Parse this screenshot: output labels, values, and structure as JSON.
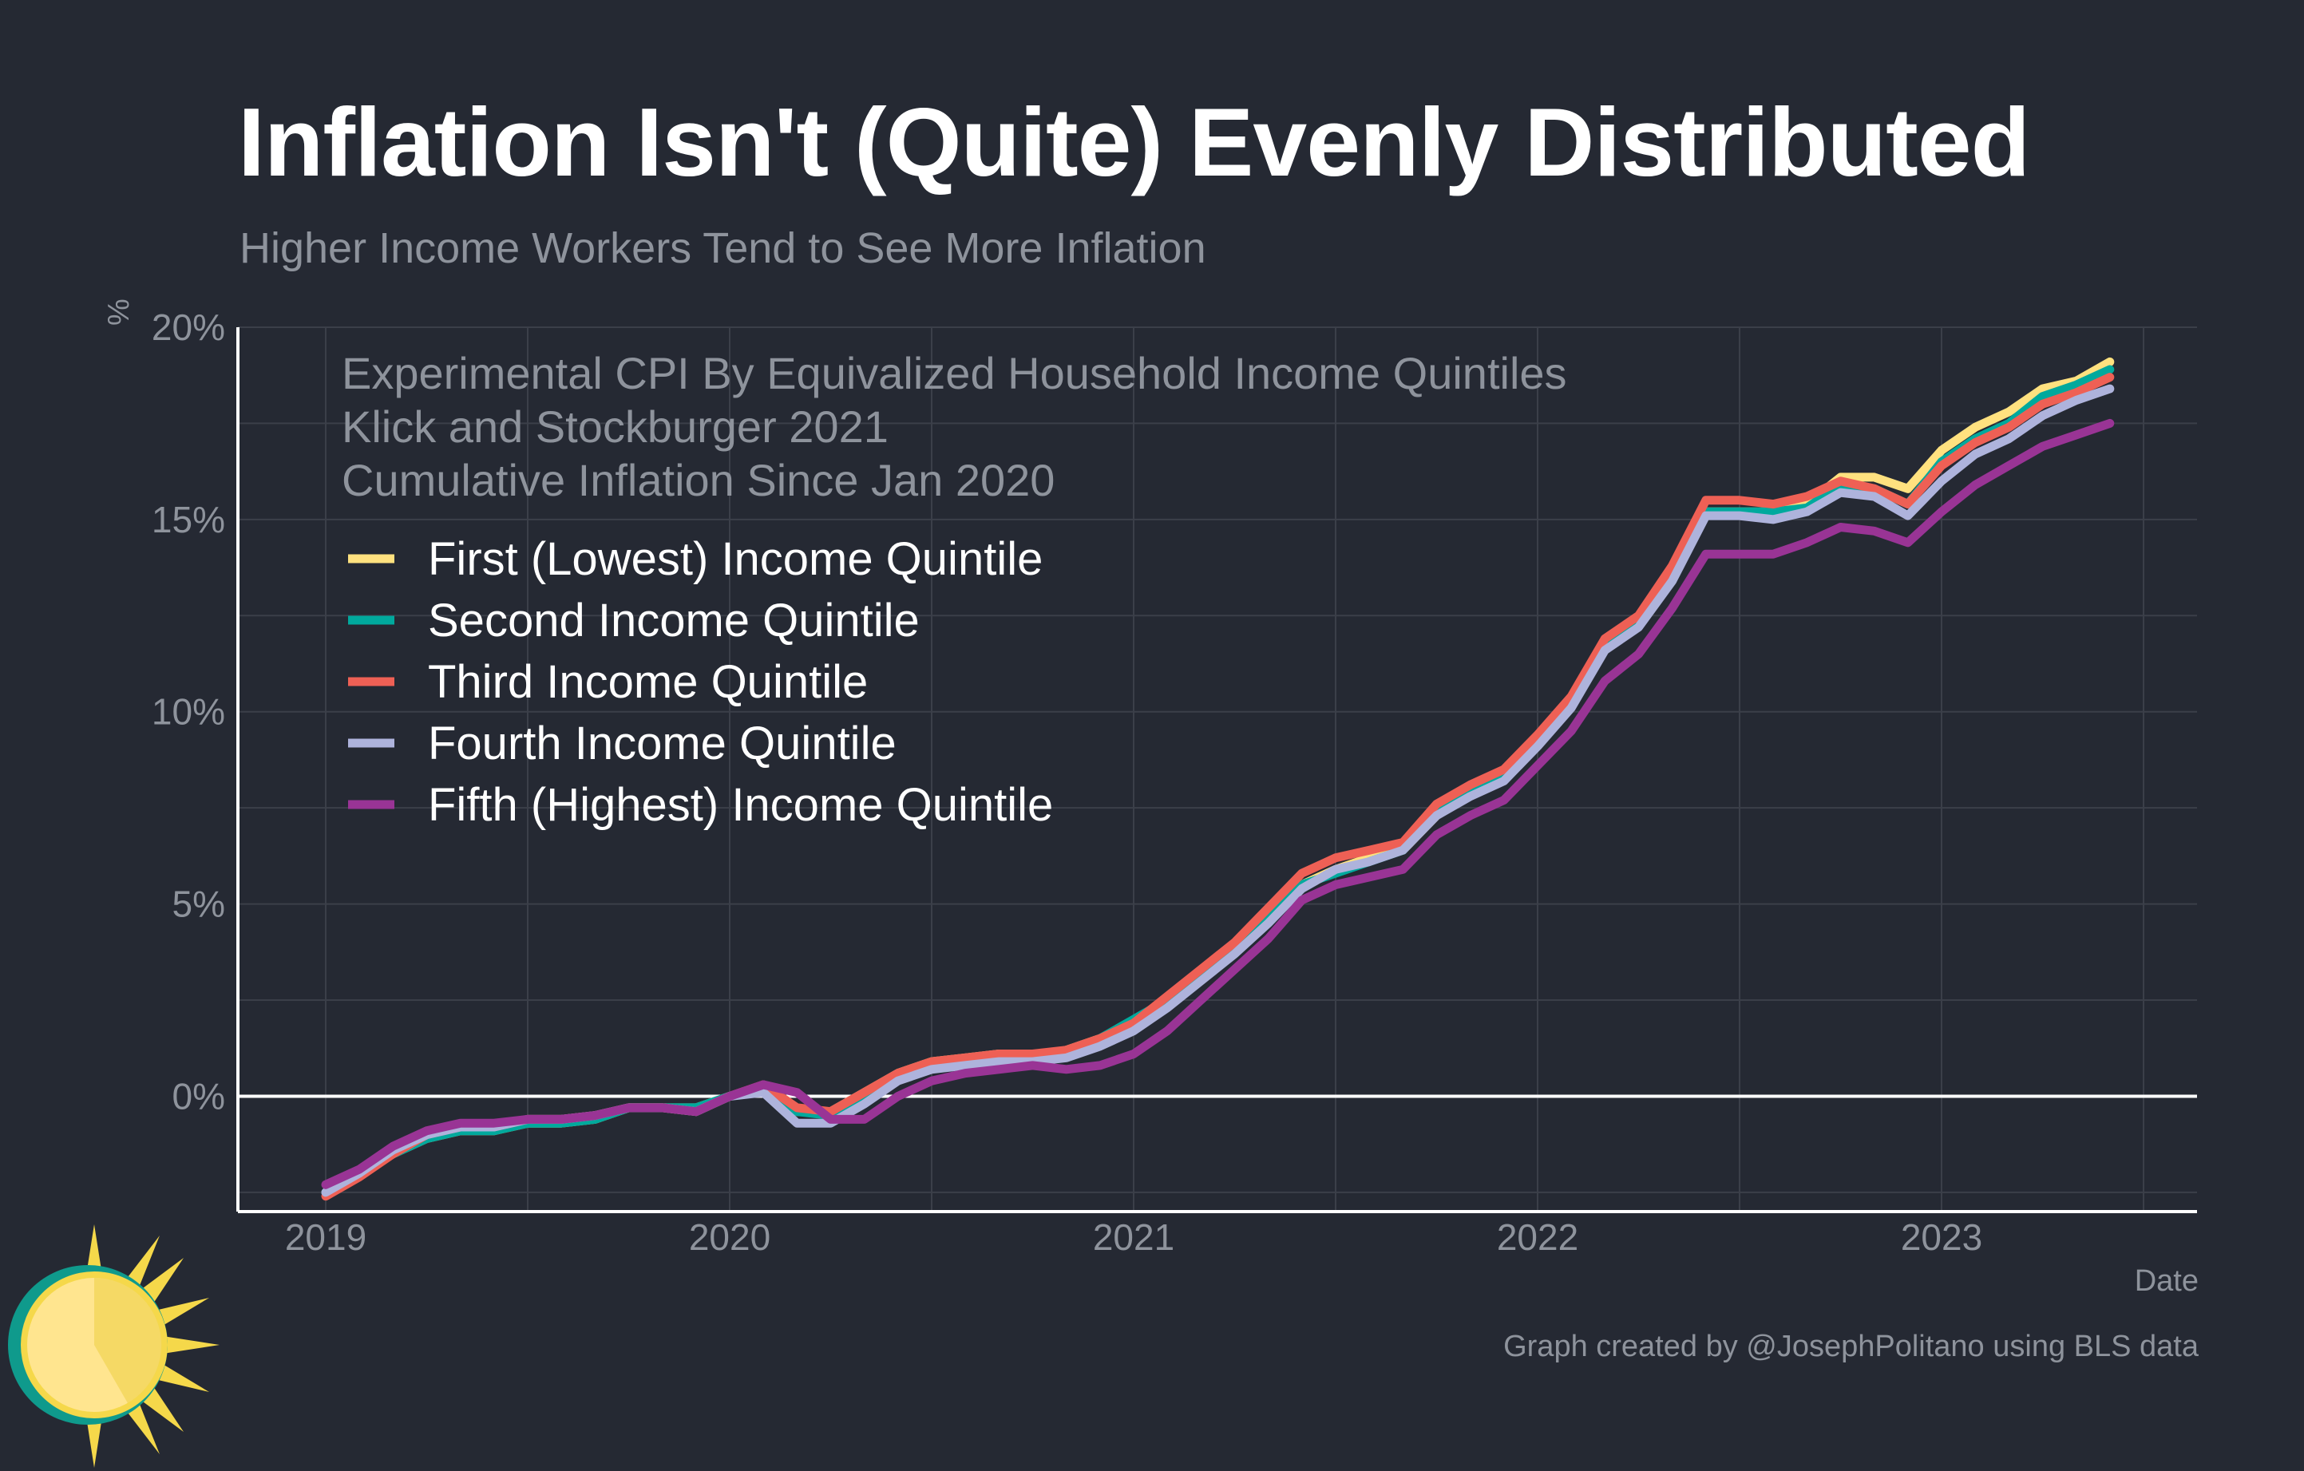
{
  "title": "Inflation Isn't (Quite) Evenly Distributed",
  "subtitle": "Higher Income Workers Tend to See More Inflation",
  "caption": "Graph created by @JosephPolitano using BLS data",
  "colors": {
    "background": "#252933",
    "grid": "#3b3f49",
    "axis": "#ffffff",
    "muted_text": "#8e939c"
  },
  "chart_data": {
    "type": "line",
    "xlabel": "Date",
    "ylabel": "%",
    "ylim": [
      -3,
      20
    ],
    "yticks": [
      0,
      5,
      10,
      15,
      20
    ],
    "ytick_labels": [
      "0%",
      "5%",
      "10%",
      "15%",
      "20%"
    ],
    "xticks": [
      "2019",
      "2020",
      "2021",
      "2022",
      "2023"
    ],
    "legend_location": "top-left",
    "legend_title": [
      "Experimental CPI By Equivalized Household Income Quintiles",
      "Klick and Stockburger 2021",
      "Cumulative Inflation Since Jan 2020"
    ],
    "x": [
      "2019-01",
      "2019-02",
      "2019-03",
      "2019-04",
      "2019-05",
      "2019-06",
      "2019-07",
      "2019-08",
      "2019-09",
      "2019-10",
      "2019-11",
      "2019-12",
      "2020-01",
      "2020-02",
      "2020-03",
      "2020-04",
      "2020-05",
      "2020-06",
      "2020-07",
      "2020-08",
      "2020-09",
      "2020-10",
      "2020-11",
      "2020-12",
      "2021-01",
      "2021-02",
      "2021-03",
      "2021-04",
      "2021-05",
      "2021-06",
      "2021-07",
      "2021-08",
      "2021-09",
      "2021-10",
      "2021-11",
      "2021-12",
      "2022-01",
      "2022-02",
      "2022-03",
      "2022-04",
      "2022-05",
      "2022-06",
      "2022-07",
      "2022-08",
      "2022-09",
      "2022-10",
      "2022-11",
      "2022-12",
      "2023-01",
      "2023-02",
      "2023-03",
      "2023-04",
      "2023-05",
      "2023-06"
    ],
    "series": [
      {
        "name": "First (Lowest) Income Quintile",
        "color": "#ffe17f",
        "values": [
          -2.5,
          -2.0,
          -1.5,
          -1.1,
          -0.9,
          -0.9,
          -0.7,
          -0.7,
          -0.6,
          -0.3,
          -0.3,
          -0.3,
          0.0,
          0.2,
          -0.4,
          -0.4,
          0.1,
          0.6,
          0.9,
          1.0,
          1.1,
          1.0,
          1.2,
          1.5,
          1.9,
          2.4,
          3.1,
          3.8,
          4.6,
          5.5,
          5.9,
          6.2,
          6.4,
          7.3,
          8.0,
          8.4,
          9.3,
          10.3,
          11.8,
          12.4,
          13.6,
          15.2,
          15.2,
          15.2,
          15.4,
          16.1,
          16.1,
          15.8,
          16.8,
          17.4,
          17.8,
          18.4,
          18.6,
          19.1
        ]
      },
      {
        "name": "Second Income Quintile",
        "color": "#00a99d",
        "values": [
          -2.5,
          -2.0,
          -1.5,
          -1.1,
          -0.9,
          -0.9,
          -0.7,
          -0.7,
          -0.6,
          -0.3,
          -0.3,
          -0.3,
          0.0,
          0.2,
          -0.4,
          -0.5,
          0.0,
          0.5,
          0.8,
          0.9,
          1.0,
          1.0,
          1.1,
          1.5,
          2.0,
          2.5,
          3.2,
          3.9,
          4.7,
          5.5,
          5.8,
          6.1,
          6.4,
          7.4,
          8.0,
          8.4,
          9.3,
          10.3,
          11.8,
          12.3,
          13.5,
          15.2,
          15.2,
          15.2,
          15.3,
          15.9,
          15.8,
          15.4,
          16.5,
          17.1,
          17.5,
          18.2,
          18.5,
          18.9
        ]
      },
      {
        "name": "Third Income Quintile",
        "color": "#ee6055",
        "values": [
          -2.6,
          -2.1,
          -1.5,
          -1.0,
          -0.8,
          -0.8,
          -0.6,
          -0.6,
          -0.5,
          -0.3,
          -0.3,
          -0.4,
          0.0,
          0.3,
          -0.3,
          -0.4,
          0.1,
          0.6,
          0.9,
          1.0,
          1.1,
          1.1,
          1.2,
          1.5,
          1.9,
          2.6,
          3.3,
          4.0,
          4.9,
          5.8,
          6.2,
          6.4,
          6.6,
          7.6,
          8.1,
          8.5,
          9.4,
          10.4,
          11.9,
          12.5,
          13.8,
          15.5,
          15.5,
          15.4,
          15.6,
          16.0,
          15.8,
          15.4,
          16.4,
          17.0,
          17.4,
          18.0,
          18.3,
          18.7
        ]
      },
      {
        "name": "Fourth Income Quintile",
        "color": "#aeb3dc",
        "values": [
          -2.5,
          -2.0,
          -1.4,
          -1.0,
          -0.8,
          -0.8,
          -0.6,
          -0.6,
          -0.5,
          -0.3,
          -0.3,
          -0.4,
          0.0,
          0.1,
          -0.7,
          -0.7,
          -0.2,
          0.4,
          0.7,
          0.8,
          0.9,
          0.9,
          1.0,
          1.3,
          1.7,
          2.3,
          3.0,
          3.7,
          4.5,
          5.4,
          5.9,
          6.1,
          6.4,
          7.3,
          7.8,
          8.2,
          9.1,
          10.1,
          11.6,
          12.2,
          13.4,
          15.1,
          15.1,
          15.0,
          15.2,
          15.7,
          15.6,
          15.1,
          16.0,
          16.7,
          17.1,
          17.7,
          18.1,
          18.4
        ]
      },
      {
        "name": "Fifth (Highest) Income Quintile",
        "color": "#993495",
        "values": [
          -2.3,
          -1.9,
          -1.3,
          -0.9,
          -0.7,
          -0.7,
          -0.6,
          -0.6,
          -0.5,
          -0.3,
          -0.3,
          -0.4,
          0.0,
          0.3,
          0.1,
          -0.6,
          -0.6,
          0.0,
          0.4,
          0.6,
          0.7,
          0.8,
          0.7,
          0.8,
          1.1,
          1.7,
          2.5,
          3.3,
          4.1,
          5.1,
          5.5,
          5.7,
          5.9,
          6.8,
          7.3,
          7.7,
          8.6,
          9.5,
          10.8,
          11.5,
          12.7,
          14.1,
          14.1,
          14.1,
          14.4,
          14.8,
          14.7,
          14.4,
          15.2,
          15.9,
          16.4,
          16.9,
          17.2,
          17.5
        ]
      }
    ]
  }
}
